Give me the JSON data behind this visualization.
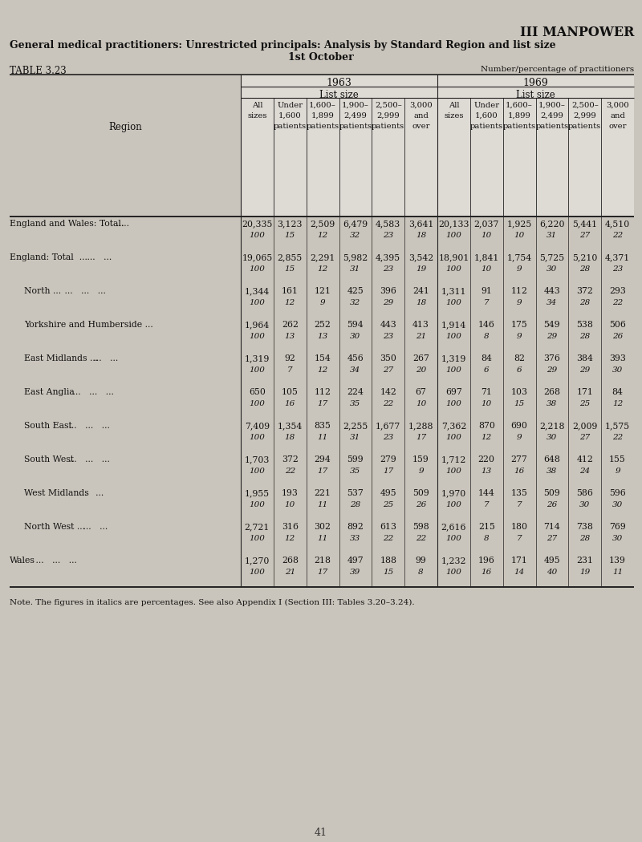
{
  "title_right": "III MANPOWER",
  "title_main": "General medical practitioners: Unrestricted principals: Analysis by Standard Region and list size",
  "title_sub": "1st October",
  "table_label": "TABLE 3.23",
  "table_note_right": "Number/percentage of practitioners",
  "note": "Note. The figures in italics are percentages. See also Appendix I (Section III: Tables 3.20–3.24).",
  "page_number": "41",
  "bg_color": "#cac5bc",
  "table_bg": "#e8e4de",
  "rows": [
    {
      "label": "England and Wales: Total...",
      "label2": "   ...",
      "indent": 0,
      "vals1": [
        "20,335",
        "3,123",
        "2,509",
        "6,479",
        "4,583",
        "3,641"
      ],
      "pcts1": [
        "100",
        "15",
        "12",
        "32",
        "23",
        "18"
      ],
      "vals2": [
        "20,133",
        "2,037",
        "1,925",
        "6,220",
        "5,441",
        "4,510"
      ],
      "pcts2": [
        "100",
        "10",
        "10",
        "31",
        "27",
        "22"
      ]
    },
    {
      "label": "England: Total  ...",
      "label2": "   ...   ...",
      "indent": 0,
      "vals1": [
        "19,065",
        "2,855",
        "2,291",
        "5,982",
        "4,395",
        "3,542"
      ],
      "pcts1": [
        "100",
        "15",
        "12",
        "31",
        "23",
        "19"
      ],
      "vals2": [
        "18,901",
        "1,841",
        "1,754",
        "5,725",
        "5,210",
        "4,371"
      ],
      "pcts2": [
        "100",
        "10",
        "9",
        "30",
        "28",
        "23"
      ]
    },
    {
      "label": "North ...",
      "label2": "   ...   ...   ...",
      "indent": 1,
      "vals1": [
        "1,344",
        "161",
        "121",
        "425",
        "396",
        "241"
      ],
      "pcts1": [
        "100",
        "12",
        "9",
        "32",
        "29",
        "18"
      ],
      "vals2": [
        "1,311",
        "91",
        "112",
        "443",
        "372",
        "293"
      ],
      "pcts2": [
        "100",
        "7",
        "9",
        "34",
        "28",
        "22"
      ]
    },
    {
      "label": "Yorkshire and Humberside ...",
      "label2": "",
      "indent": 1,
      "vals1": [
        "1,964",
        "262",
        "252",
        "594",
        "443",
        "413"
      ],
      "pcts1": [
        "100",
        "13",
        "13",
        "30",
        "23",
        "21"
      ],
      "vals2": [
        "1,914",
        "146",
        "175",
        "549",
        "538",
        "506"
      ],
      "pcts2": [
        "100",
        "8",
        "9",
        "29",
        "28",
        "26"
      ]
    },
    {
      "label": "East Midlands ...",
      "label2": "   ...   ...",
      "indent": 1,
      "vals1": [
        "1,319",
        "92",
        "154",
        "456",
        "350",
        "267"
      ],
      "pcts1": [
        "100",
        "7",
        "12",
        "34",
        "27",
        "20"
      ],
      "vals2": [
        "1,319",
        "84",
        "82",
        "376",
        "384",
        "393"
      ],
      "pcts2": [
        "100",
        "6",
        "6",
        "29",
        "29",
        "30"
      ]
    },
    {
      "label": "East Anglia",
      "label2": "   ...   ...   ...",
      "indent": 1,
      "vals1": [
        "650",
        "105",
        "112",
        "224",
        "142",
        "67"
      ],
      "pcts1": [
        "100",
        "16",
        "17",
        "35",
        "22",
        "10"
      ],
      "vals2": [
        "697",
        "71",
        "103",
        "268",
        "171",
        "84"
      ],
      "pcts2": [
        "100",
        "10",
        "15",
        "38",
        "25",
        "12"
      ]
    },
    {
      "label": "South East",
      "label2": "   ...   ...   ...",
      "indent": 1,
      "vals1": [
        "7,409",
        "1,354",
        "835",
        "2,255",
        "1,677",
        "1,288"
      ],
      "pcts1": [
        "100",
        "18",
        "11",
        "31",
        "23",
        "17"
      ],
      "vals2": [
        "7,362",
        "870",
        "690",
        "2,218",
        "2,009",
        "1,575"
      ],
      "pcts2": [
        "100",
        "12",
        "9",
        "30",
        "27",
        "22"
      ]
    },
    {
      "label": "South West",
      "label2": "   ...   ...   ...",
      "indent": 1,
      "vals1": [
        "1,703",
        "372",
        "294",
        "599",
        "279",
        "159"
      ],
      "pcts1": [
        "100",
        "22",
        "17",
        "35",
        "17",
        "9"
      ],
      "vals2": [
        "1,712",
        "220",
        "277",
        "648",
        "412",
        "155"
      ],
      "pcts2": [
        "100",
        "13",
        "16",
        "38",
        "24",
        "9"
      ]
    },
    {
      "label": "West Midlands",
      "label2": "   ...   ...",
      "indent": 1,
      "vals1": [
        "1,955",
        "193",
        "221",
        "537",
        "495",
        "509"
      ],
      "pcts1": [
        "100",
        "10",
        "11",
        "28",
        "25",
        "26"
      ],
      "vals2": [
        "1,970",
        "144",
        "135",
        "509",
        "586",
        "596"
      ],
      "pcts2": [
        "100",
        "7",
        "7",
        "26",
        "30",
        "30"
      ]
    },
    {
      "label": "North West ...",
      "label2": "   ...   ...",
      "indent": 1,
      "vals1": [
        "2,721",
        "316",
        "302",
        "892",
        "613",
        "598"
      ],
      "pcts1": [
        "100",
        "12",
        "11",
        "33",
        "22",
        "22"
      ],
      "vals2": [
        "2,616",
        "215",
        "180",
        "714",
        "738",
        "769"
      ],
      "pcts2": [
        "100",
        "8",
        "7",
        "27",
        "28",
        "30"
      ]
    },
    {
      "label": "Wales",
      "label2": "   ...   ...   ...",
      "indent": 0,
      "vals1": [
        "1,270",
        "268",
        "218",
        "497",
        "188",
        "99"
      ],
      "pcts1": [
        "100",
        "21",
        "17",
        "39",
        "15",
        "8"
      ],
      "vals2": [
        "1,232",
        "196",
        "171",
        "495",
        "231",
        "139"
      ],
      "pcts2": [
        "100",
        "16",
        "14",
        "40",
        "19",
        "11"
      ]
    }
  ]
}
